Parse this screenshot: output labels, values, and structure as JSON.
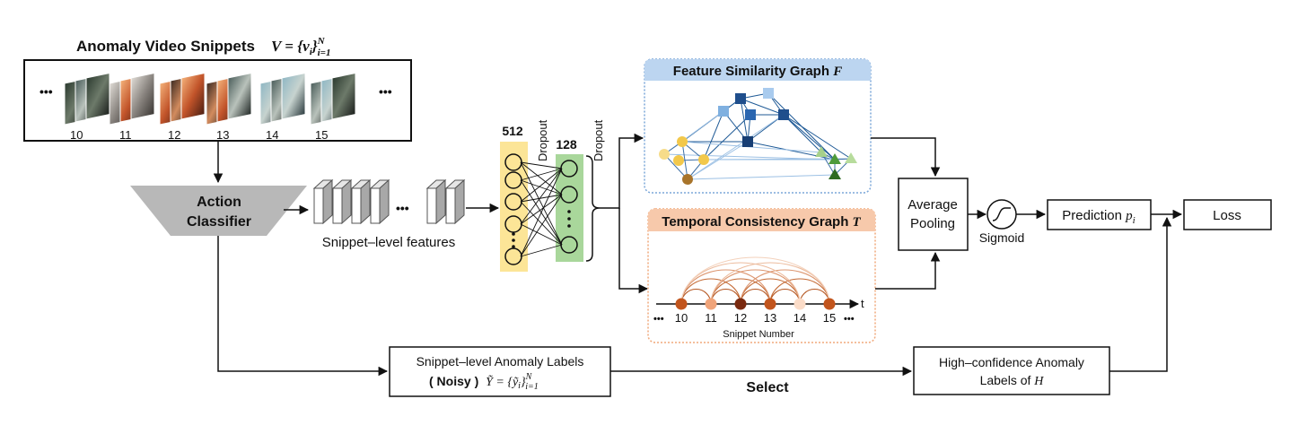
{
  "video": {
    "title": "Anomaly Video Snippets",
    "title_math": "V = {v",
    "title_sub": "i",
    "title_close": "}",
    "title_super": "N",
    "title_sub2": "i=1",
    "ellipsis_left": "•••",
    "ellipsis_right": "•••",
    "frame_numbers": [
      "10",
      "11",
      "12",
      "13",
      "14",
      "15"
    ]
  },
  "classifier": {
    "line1": "Action",
    "line2": "Classifier"
  },
  "features": {
    "label": "Snippet–level features",
    "ellipsis": "•••"
  },
  "mlp": {
    "layer1_size": "512",
    "layer2_size": "128",
    "dropout1": "Dropout",
    "dropout2": "Dropout",
    "colors": {
      "layer1": "#fce597",
      "layer2": "#a9d79b"
    }
  },
  "fsg": {
    "title": "Feature Similarity Graph",
    "symbol": "F",
    "colors": {
      "header": "#bcd5f0",
      "border": "#7aa6d8"
    }
  },
  "tcg": {
    "title": "Temporal Consistency Graph",
    "symbol": "T",
    "axis_t": "t",
    "numbers": [
      "10",
      "11",
      "12",
      "13",
      "14",
      "15"
    ],
    "ellipsis_left": "•••",
    "ellipsis_right": "•••",
    "x_label": "Snippet Number",
    "colors": {
      "header": "#f7c9ab",
      "border": "#f0a87a"
    }
  },
  "pooling": {
    "line1": "Average",
    "line2": "Pooling"
  },
  "sigmoid": {
    "label": "Sigmoid"
  },
  "prediction": {
    "label": "Prediction",
    "symbol": "p",
    "sub": "i"
  },
  "loss": {
    "label": "Loss"
  },
  "noisy_labels": {
    "line1": "Snippet–level Anomaly Labels",
    "noisy": "( Noisy )",
    "math": "Ỹ = {ỹ",
    "math_sub": "i",
    "math_close": "}",
    "math_super": "N",
    "math_sub2": "i=1"
  },
  "select": {
    "label": "Select"
  },
  "high_conf": {
    "line1": "High–confidence Anomaly",
    "line2": "Labels of",
    "symbol": "H"
  }
}
